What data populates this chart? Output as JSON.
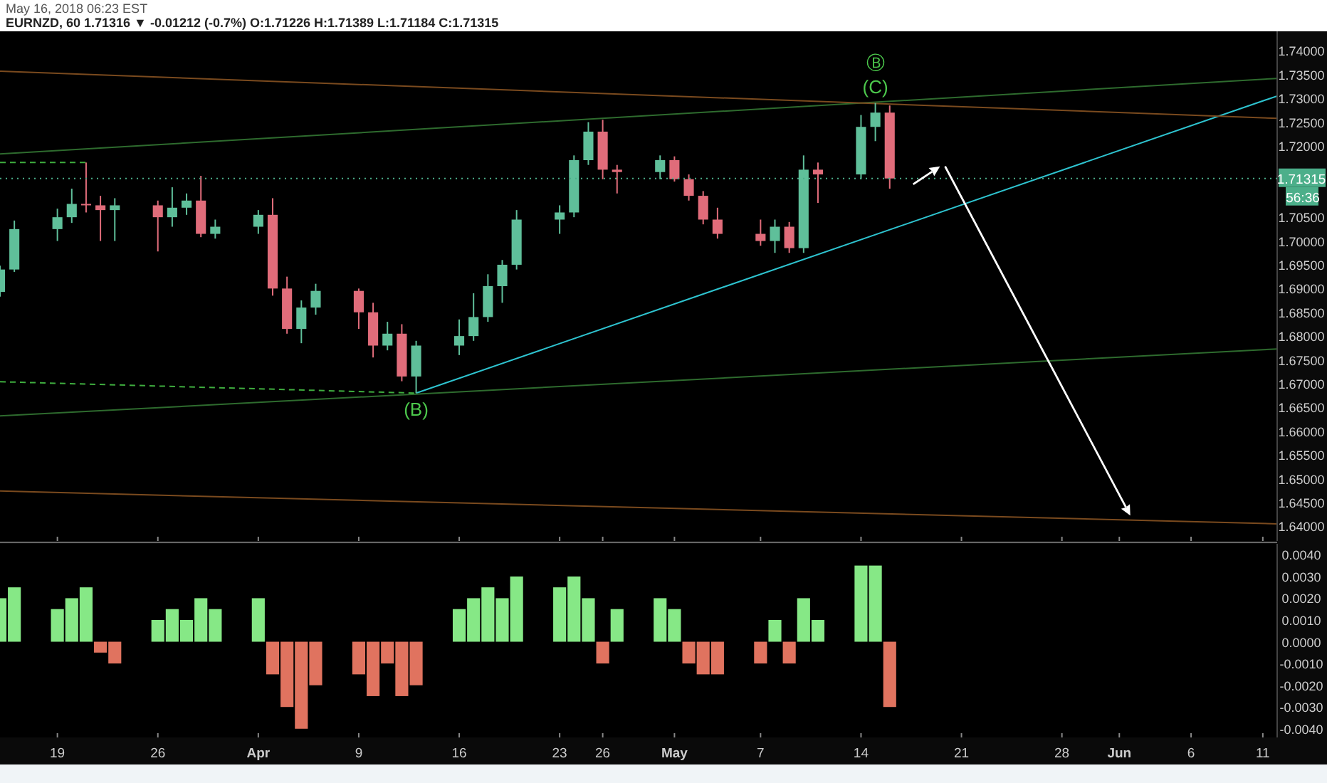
{
  "chart_data": [
    {
      "type": "candlestick",
      "title": "EURNZD, 60  1.71316 ▼ -0.01212 (-0.7%) O:1.71226 H:1.71389 L:1.71184 C:1.71315",
      "subtitle": "May 16, 2018 06:23 EST",
      "x": [
        "2018-03-15",
        "2018-03-16",
        "2018-03-19",
        "2018-03-20",
        "2018-03-21",
        "2018-03-22",
        "2018-03-23",
        "2018-03-26",
        "2018-03-27",
        "2018-03-28",
        "2018-03-29",
        "2018-03-30",
        "2018-04-02",
        "2018-04-03",
        "2018-04-04",
        "2018-04-05",
        "2018-04-06",
        "2018-04-09",
        "2018-04-10",
        "2018-04-11",
        "2018-04-12",
        "2018-04-13",
        "2018-04-16",
        "2018-04-17",
        "2018-04-18",
        "2018-04-19",
        "2018-04-20",
        "2018-04-23",
        "2018-04-24",
        "2018-04-25",
        "2018-04-26",
        "2018-04-27",
        "2018-04-30",
        "2018-05-01",
        "2018-05-02",
        "2018-05-03",
        "2018-05-04",
        "2018-05-07",
        "2018-05-08",
        "2018-05-09",
        "2018-05-10",
        "2018-05-11",
        "2018-05-14",
        "2018-05-15",
        "2018-05-16"
      ],
      "ohlc": [
        [
          1.6893,
          1.6948,
          1.6883,
          1.694
        ],
        [
          1.694,
          1.7043,
          1.6935,
          1.7025
        ],
        [
          1.7025,
          1.7068,
          1.7,
          1.705
        ],
        [
          1.705,
          1.711,
          1.7038,
          1.7078
        ],
        [
          1.7078,
          1.7165,
          1.706,
          1.7075
        ],
        [
          1.7075,
          1.7095,
          1.7,
          1.7065
        ],
        [
          1.7065,
          1.709,
          1.7,
          1.7075
        ],
        [
          1.7075,
          1.7085,
          1.6978,
          1.705
        ],
        [
          1.705,
          1.7113,
          1.703,
          1.707
        ],
        [
          1.707,
          1.71,
          1.7055,
          1.7085
        ],
        [
          1.7085,
          1.7137,
          1.7008,
          1.7015
        ],
        [
          1.7015,
          1.7045,
          1.7005,
          1.703
        ],
        [
          1.703,
          1.7065,
          1.7015,
          1.7055
        ],
        [
          1.7055,
          1.709,
          1.6885,
          1.69
        ],
        [
          1.69,
          1.6925,
          1.6805,
          1.6815
        ],
        [
          1.6815,
          1.6875,
          1.6785,
          1.686
        ],
        [
          1.686,
          1.691,
          1.6845,
          1.6895
        ],
        [
          1.6895,
          1.69,
          1.6815,
          1.685
        ],
        [
          1.685,
          1.687,
          1.6755,
          1.678
        ],
        [
          1.678,
          1.683,
          1.677,
          1.6805
        ],
        [
          1.6805,
          1.6825,
          1.6705,
          1.6715
        ],
        [
          1.6715,
          1.679,
          1.668,
          1.678
        ],
        [
          1.678,
          1.6835,
          1.676,
          1.68
        ],
        [
          1.68,
          1.689,
          1.679,
          1.684
        ],
        [
          1.684,
          1.693,
          1.683,
          1.6905
        ],
        [
          1.6905,
          1.696,
          1.687,
          1.695
        ],
        [
          1.695,
          1.7065,
          1.694,
          1.7045
        ],
        [
          1.7045,
          1.7075,
          1.7015,
          1.706
        ],
        [
          1.706,
          1.718,
          1.705,
          1.717
        ],
        [
          1.717,
          1.725,
          1.716,
          1.723
        ],
        [
          1.723,
          1.7255,
          1.713,
          1.715
        ],
        [
          1.715,
          1.716,
          1.71,
          1.7145
        ],
        [
          1.7145,
          1.718,
          1.713,
          1.717
        ],
        [
          1.717,
          1.7178,
          1.7125,
          1.713
        ],
        [
          1.713,
          1.714,
          1.7085,
          1.7095
        ],
        [
          1.7095,
          1.7105,
          1.7035,
          1.7045
        ],
        [
          1.7045,
          1.707,
          1.7005,
          1.7015
        ],
        [
          1.7015,
          1.7045,
          1.699,
          1.7
        ],
        [
          1.7,
          1.7045,
          1.6975,
          1.703
        ],
        [
          1.703,
          1.704,
          1.6975,
          1.6985
        ],
        [
          1.6985,
          1.718,
          1.6975,
          1.715
        ],
        [
          1.715,
          1.7165,
          1.708,
          1.714
        ],
        [
          1.714,
          1.7265,
          1.713,
          1.724
        ],
        [
          1.724,
          1.729,
          1.721,
          1.727
        ],
        [
          1.727,
          1.7285,
          1.711,
          1.71315
        ]
      ],
      "colors": [
        "#5fbf9a",
        "#5fbf9a",
        "#5fbf9a",
        "#5fbf9a",
        "#e06c7a",
        "#e06c7a",
        "#5fbf9a",
        "#e06c7a",
        "#5fbf9a",
        "#5fbf9a",
        "#e06c7a",
        "#5fbf9a",
        "#5fbf9a",
        "#e06c7a",
        "#e06c7a",
        "#5fbf9a",
        "#5fbf9a",
        "#e06c7a",
        "#e06c7a",
        "#5fbf9a",
        "#e06c7a",
        "#5fbf9a",
        "#5fbf9a",
        "#5fbf9a",
        "#5fbf9a",
        "#5fbf9a",
        "#5fbf9a",
        "#5fbf9a",
        "#5fbf9a",
        "#5fbf9a",
        "#e06c7a",
        "#e06c7a",
        "#5fbf9a",
        "#e06c7a",
        "#e06c7a",
        "#e06c7a",
        "#e06c7a",
        "#e06c7a",
        "#5fbf9a",
        "#e06c7a",
        "#5fbf9a",
        "#e06c7a",
        "#5fbf9a",
        "#5fbf9a",
        "#e06c7a"
      ],
      "series": [
        {
          "type": "line",
          "color": "#2ec4d0",
          "x": [
            "2018-04-13",
            "2018-06-12"
          ],
          "values": [
            1.668,
            1.7305
          ]
        },
        {
          "type": "line",
          "color": "#2e6b2e",
          "x": [
            "2018-03-15",
            "2018-06-12"
          ],
          "values": [
            1.7183,
            1.7342
          ]
        },
        {
          "type": "line",
          "color": "#2e6b2e",
          "x": [
            "2018-03-15",
            "2018-06-12"
          ],
          "values": [
            1.6632,
            1.6773
          ]
        },
        {
          "type": "line",
          "color": "#7a4a1e",
          "x": [
            "2018-03-15",
            "2018-06-12"
          ],
          "values": [
            1.7357,
            1.7258
          ]
        },
        {
          "type": "line",
          "color": "#7a4a1e",
          "x": [
            "2018-03-15",
            "2018-06-12"
          ],
          "values": [
            1.6474,
            1.6405
          ]
        },
        {
          "type": "line",
          "color": "#3fae3f",
          "line_style": "dashed",
          "x": [
            "2018-03-15",
            "2018-03-21"
          ],
          "values": [
            1.7165,
            1.7165
          ]
        },
        {
          "type": "line",
          "color": "#3fae3f",
          "line_style": "dashed",
          "x": [
            "2018-03-15",
            "2018-04-13"
          ],
          "values": [
            1.6704,
            1.668
          ]
        }
      ],
      "xlim": [
        "2018-03-15",
        "2018-06-12"
      ],
      "xticks": [
        "2018-03-19",
        "2018-03-26",
        "2018-04-02",
        "2018-04-09",
        "2018-04-16",
        "2018-04-23",
        "2018-04-26",
        "2018-05-01",
        "2018-05-07",
        "2018-05-14",
        "2018-05-21",
        "2018-05-28",
        "2018-06-01",
        "2018-06-06",
        "2018-06-11"
      ],
      "ylim": [
        1.6369,
        1.7441
      ],
      "yticks": [
        {
          "value": 1.64,
          "label": "1.64000"
        },
        {
          "value": 1.645,
          "label": "1.64500"
        },
        {
          "value": 1.65,
          "label": "1.65000"
        },
        {
          "value": 1.655,
          "label": "1.65500"
        },
        {
          "value": 1.66,
          "label": "1.66000"
        },
        {
          "value": 1.665,
          "label": "1.66500"
        },
        {
          "value": 1.67,
          "label": "1.67000"
        },
        {
          "value": 1.675,
          "label": "1.67500"
        },
        {
          "value": 1.68,
          "label": "1.68000"
        },
        {
          "value": 1.685,
          "label": "1.68500"
        },
        {
          "value": 1.69,
          "label": "1.69000"
        },
        {
          "value": 1.695,
          "label": "1.69500"
        },
        {
          "value": 1.7,
          "label": "1.70000"
        },
        {
          "value": 1.705,
          "label": "1.70500"
        },
        {
          "value": 1.72,
          "label": "1.72000"
        },
        {
          "value": 1.725,
          "label": "1.72500"
        },
        {
          "value": 1.73,
          "label": "1.73000"
        },
        {
          "value": 1.735,
          "label": "1.73500"
        },
        {
          "value": 1.74,
          "label": "1.74000"
        }
      ],
      "ref_lines": [
        {
          "axis": "y",
          "value": 1.71315,
          "label": "1.71315",
          "color": "#4caf8a"
        }
      ],
      "annotations": [
        {
          "text": "(B)",
          "x": "2018-04-13",
          "y": 1.668
        },
        {
          "text": "(C)",
          "x": "2018-05-15",
          "y": 1.729
        },
        {
          "text": "Ⓑ",
          "x": "2018-05-15",
          "y": 1.729
        },
        "56:36"
      ],
      "tick_labels": "y"
    },
    {
      "type": "bar",
      "x": [
        "2018-03-15",
        "2018-03-16",
        "2018-03-19",
        "2018-03-20",
        "2018-03-21",
        "2018-03-22",
        "2018-03-23",
        "2018-03-26",
        "2018-03-27",
        "2018-03-28",
        "2018-03-29",
        "2018-03-30",
        "2018-04-02",
        "2018-04-03",
        "2018-04-04",
        "2018-04-05",
        "2018-04-06",
        "2018-04-09",
        "2018-04-10",
        "2018-04-11",
        "2018-04-12",
        "2018-04-13",
        "2018-04-16",
        "2018-04-17",
        "2018-04-18",
        "2018-04-19",
        "2018-04-20",
        "2018-04-23",
        "2018-04-24",
        "2018-04-25",
        "2018-04-26",
        "2018-04-27",
        "2018-04-30",
        "2018-05-01",
        "2018-05-02",
        "2018-05-03",
        "2018-05-04",
        "2018-05-07",
        "2018-05-08",
        "2018-05-09",
        "2018-05-10",
        "2018-05-11",
        "2018-05-14",
        "2018-05-15",
        "2018-05-16"
      ],
      "values": [
        0.002,
        0.0025,
        0.0015,
        0.002,
        0.0025,
        -0.0005,
        -0.001,
        0.001,
        0.0015,
        0.001,
        0.002,
        0.0015,
        0.002,
        -0.0015,
        -0.003,
        -0.004,
        -0.002,
        -0.0015,
        -0.0025,
        -0.001,
        -0.0025,
        -0.002,
        0.0015,
        0.002,
        0.0025,
        0.002,
        0.003,
        0.0025,
        0.003,
        0.002,
        -0.001,
        0.0015,
        0.002,
        0.0015,
        -0.001,
        -0.0015,
        -0.0015,
        -0.001,
        0.001,
        -0.001,
        0.002,
        0.001,
        0.0035,
        0.0035,
        -0.003
      ],
      "colors": [
        "#86e886",
        "#86e886",
        "#86e886",
        "#86e886",
        "#86e886",
        "#e0735f",
        "#e0735f",
        "#86e886",
        "#86e886",
        "#86e886",
        "#86e886",
        "#86e886",
        "#86e886",
        "#e0735f",
        "#e0735f",
        "#e0735f",
        "#e0735f",
        "#e0735f",
        "#e0735f",
        "#e0735f",
        "#e0735f",
        "#e0735f",
        "#86e886",
        "#86e886",
        "#86e886",
        "#86e886",
        "#86e886",
        "#86e886",
        "#86e886",
        "#86e886",
        "#e0735f",
        "#86e886",
        "#86e886",
        "#86e886",
        "#e0735f",
        "#e0735f",
        "#e0735f",
        "#e0735f",
        "#86e886",
        "#e0735f",
        "#86e886",
        "#86e886",
        "#86e886",
        "#86e886",
        "#e0735f"
      ],
      "xlim": [
        "2018-03-15",
        "2018-06-12"
      ],
      "xticks": [
        {
          "value": "2018-03-19",
          "label": "19"
        },
        {
          "value": "2018-03-26",
          "label": "26"
        },
        {
          "value": "2018-04-02",
          "label": "Apr"
        },
        {
          "value": "2018-04-09",
          "label": "9"
        },
        {
          "value": "2018-04-16",
          "label": "16"
        },
        {
          "value": "2018-04-23",
          "label": "23"
        },
        {
          "value": "2018-04-26",
          "label": "26"
        },
        {
          "value": "2018-05-01",
          "label": "May"
        },
        {
          "value": "2018-05-07",
          "label": "7"
        },
        {
          "value": "2018-05-14",
          "label": "14"
        },
        {
          "value": "2018-05-21",
          "label": "21"
        },
        {
          "value": "2018-05-28",
          "label": "28"
        },
        {
          "value": "2018-06-01",
          "label": "Jun"
        },
        {
          "value": "2018-06-06",
          "label": "6"
        },
        {
          "value": "2018-06-11",
          "label": "11"
        }
      ],
      "ylim": [
        -0.0044,
        0.0045
      ],
      "yticks": [
        {
          "value": 0.004,
          "label": "0.0040"
        },
        {
          "value": 0.003,
          "label": "0.0030"
        },
        {
          "value": 0.002,
          "label": "0.0020"
        },
        {
          "value": 0.001,
          "label": "0.0010"
        },
        {
          "value": 0,
          "label": "0.0000"
        },
        {
          "value": -0.001,
          "label": "-0.0010"
        },
        {
          "value": -0.002,
          "label": "-0.0020"
        },
        {
          "value": -0.003,
          "label": "-0.0030"
        },
        {
          "value": -0.004,
          "label": "-0.0040"
        }
      ]
    }
  ]
}
